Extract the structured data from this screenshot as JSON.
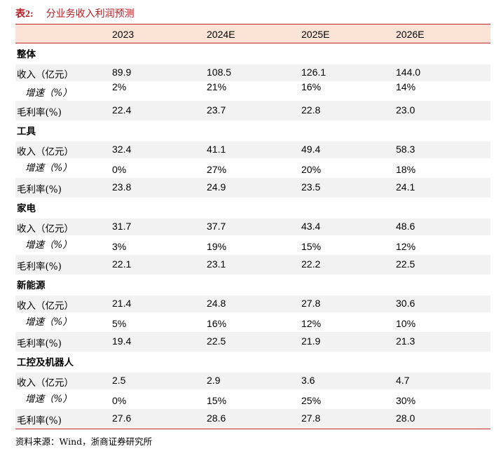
{
  "title": {
    "label": "表2:",
    "text": "分业务收入利润预测"
  },
  "table": {
    "headers": [
      "",
      "2023",
      "2024E",
      "2025E",
      "2026E"
    ],
    "row_labels": {
      "revenue": "收入（亿元）",
      "growth": "增速（%）",
      "margin": "毛利率(%)"
    },
    "segments": [
      {
        "name": "整体",
        "revenue": [
          "89.9",
          "108.5",
          "126.1",
          "144.0"
        ],
        "growth": [
          "2%",
          "21%",
          "16%",
          "14%"
        ],
        "margin": [
          "22.4",
          "23.7",
          "22.8",
          "23.0"
        ]
      },
      {
        "name": "工具",
        "revenue": [
          "32.4",
          "41.1",
          "49.4",
          "58.3"
        ],
        "growth": [
          "0%",
          "27%",
          "20%",
          "18%"
        ],
        "margin": [
          "23.8",
          "24.9",
          "23.5",
          "24.1"
        ]
      },
      {
        "name": "家电",
        "revenue": [
          "31.7",
          "37.7",
          "43.4",
          "48.6"
        ],
        "growth": [
          "3%",
          "19%",
          "15%",
          "12%"
        ],
        "margin": [
          "22.1",
          "23.1",
          "22.2",
          "22.5"
        ]
      },
      {
        "name": "新能源",
        "revenue": [
          "21.4",
          "24.8",
          "27.8",
          "30.6"
        ],
        "growth": [
          "5%",
          "16%",
          "12%",
          "10%"
        ],
        "margin": [
          "19.4",
          "22.5",
          "21.9",
          "21.3"
        ]
      },
      {
        "name": "工控及机器人",
        "revenue": [
          "2.5",
          "2.9",
          "3.6",
          "4.7"
        ],
        "growth": [
          "0%",
          "15%",
          "25%",
          "30%"
        ],
        "margin": [
          "27.6",
          "28.6",
          "27.8",
          "28.0"
        ]
      }
    ]
  },
  "source": "资料来源：Wind，浙商证券研究所",
  "colors": {
    "title": "#b01e23",
    "rule": "#c0292e",
    "header_bg": "#fbe4d6",
    "row_shade": "#f2f2f2"
  }
}
